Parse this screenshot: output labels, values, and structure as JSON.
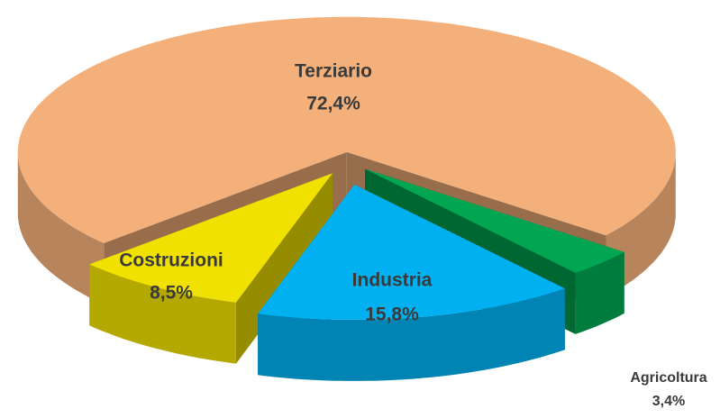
{
  "chart_data": {
    "type": "pie",
    "categories": [
      "Agricoltura",
      "Industria",
      "Costruzioni",
      "Terziario"
    ],
    "values": [
      3.4,
      15.8,
      8.5,
      72.4
    ],
    "value_labels": [
      "3,4%",
      "15,8%",
      "8,5%",
      "72,4%"
    ],
    "colors": [
      "#00a651",
      "#00b0f0",
      "#f0e100",
      "#f4b07a"
    ]
  }
}
